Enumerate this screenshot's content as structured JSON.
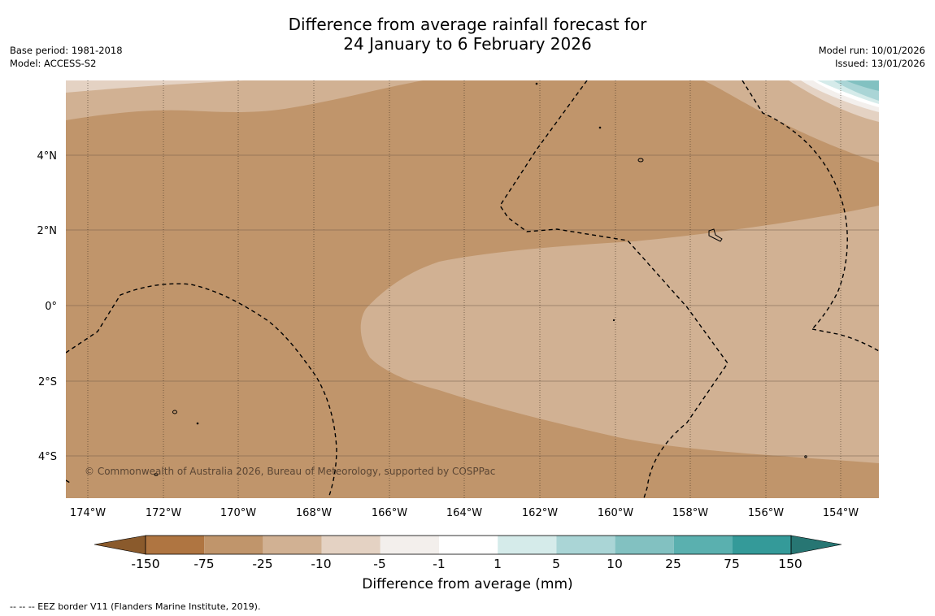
{
  "title": {
    "line1": "Difference from average rainfall forecast for",
    "line2": "24 January to 6 February 2026"
  },
  "info_left": {
    "base_period": "Base period: 1981-2018",
    "model": "Model: ACCESS-S2"
  },
  "info_right": {
    "model_run": "Model run: 10/01/2026",
    "issued": "Issued: 13/01/2026"
  },
  "map": {
    "copyright": "© Commonwealth of Australia 2026, Bureau of Meteorology, supported by COSPPac",
    "lat_labels": [
      "4°N",
      "2°N",
      "0°",
      "2°S",
      "4°S"
    ],
    "lon_labels": [
      "174°W",
      "172°W",
      "170°W",
      "168°W",
      "166°W",
      "164°W",
      "162°W",
      "160°W",
      "158°W",
      "156°W",
      "154°W"
    ],
    "colors": {
      "class_m150_m75": "#af7541",
      "class_m75_m25": "#c0956b",
      "class_m25_m10": "#d1b193",
      "class_m10_m5": "#e4d2c3",
      "class_m5_m1": "#f3efec",
      "class_m1_1": "#ffffff",
      "class_1_5": "#d5ebea",
      "class_5_10": "#aad5d6",
      "class_10_25": "#82c1c1",
      "class_25_75": "#5ab0af",
      "class_75_150": "#349a99",
      "over_150": "#277673",
      "under_m150": "#8a5a2c"
    }
  },
  "colorbar": {
    "tick_labels": [
      "-150",
      "-75",
      "-25",
      "-10",
      "-5",
      "-1",
      "1",
      "5",
      "10",
      "25",
      "75",
      "150"
    ],
    "label": "Difference from average (mm)"
  },
  "footnote": "--  --  -- EEZ border V11 (Flanders Marine Institute, 2019)."
}
